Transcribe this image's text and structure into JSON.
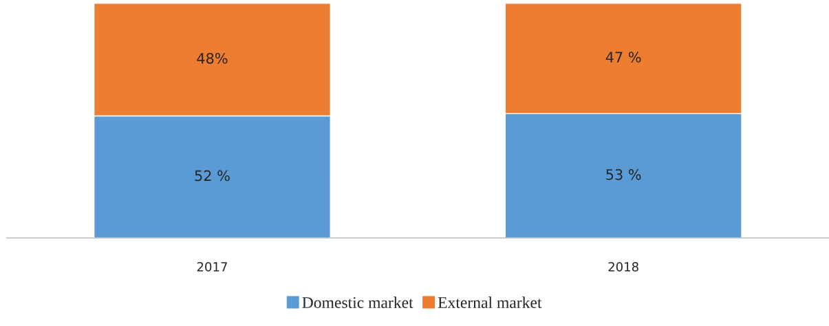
{
  "chart_data": {
    "type": "bar",
    "stacked": true,
    "categories": [
      "2017",
      "2018"
    ],
    "series": [
      {
        "name": "Domestic market",
        "color": "#5b9bd5",
        "values": [
          52,
          53
        ],
        "value_labels": [
          "52 %",
          "53 %"
        ]
      },
      {
        "name": "External market",
        "color": "#ed7d31",
        "values": [
          48,
          47
        ],
        "value_labels": [
          "48%",
          "47 %"
        ]
      }
    ],
    "legend": "bottom"
  }
}
